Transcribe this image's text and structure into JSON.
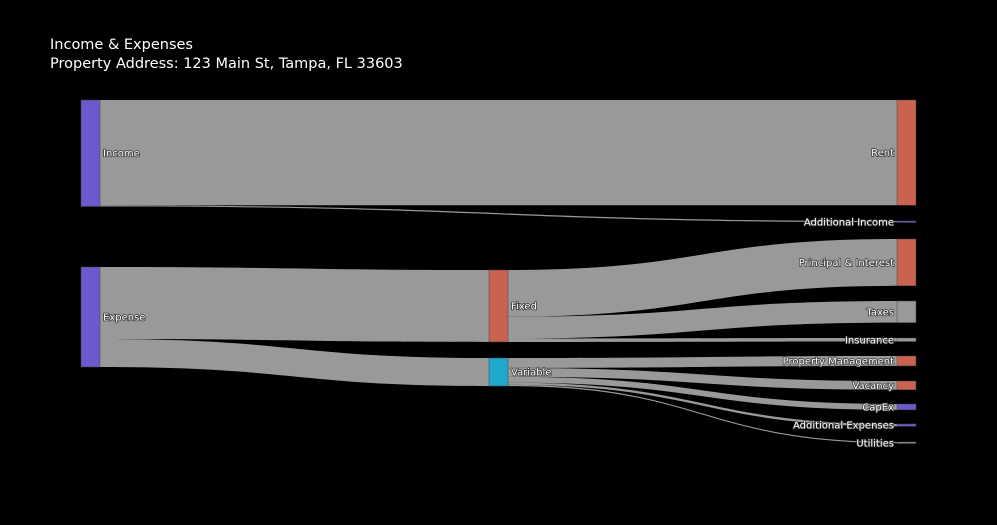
{
  "header": {
    "title": "Income & Expenses",
    "subtitle": "Property Address: 123 Main St, Tampa, FL 33603"
  },
  "chart_data": {
    "type": "sankey",
    "title": "Income & Expenses",
    "subtitle": "Property Address: 123 Main St, Tampa, FL 33603",
    "link_color": "#999999",
    "nodes": [
      {
        "id": "income",
        "label": "Income",
        "color": "#6a5acd"
      },
      {
        "id": "rent",
        "label": "Rent",
        "color": "#c9624f"
      },
      {
        "id": "additional_income",
        "label": "Additional Income",
        "color": "#6a5acd"
      },
      {
        "id": "expense",
        "label": "Expense",
        "color": "#6a5acd"
      },
      {
        "id": "fixed",
        "label": "Fixed",
        "color": "#c9624f"
      },
      {
        "id": "variable",
        "label": "Variable",
        "color": "#1fa8c9"
      },
      {
        "id": "principal_interest",
        "label": "Principal & Interest",
        "color": "#c9624f"
      },
      {
        "id": "taxes",
        "label": "Taxes",
        "color": "#999999"
      },
      {
        "id": "insurance",
        "label": "Insurance",
        "color": "#999999"
      },
      {
        "id": "property_management",
        "label": "Property Management",
        "color": "#c9624f"
      },
      {
        "id": "vacancy",
        "label": "Vacancy",
        "color": "#c9624f"
      },
      {
        "id": "capex",
        "label": "CapEx",
        "color": "#6a5acd"
      },
      {
        "id": "additional_expenses",
        "label": "Additional Expenses",
        "color": "#6a5acd"
      },
      {
        "id": "utilities",
        "label": "Utilities",
        "color": "#999999"
      }
    ],
    "links": [
      {
        "source": "income",
        "target": "rent",
        "value": 1800
      },
      {
        "source": "income",
        "target": "additional_income",
        "value": 20
      },
      {
        "source": "expense",
        "target": "fixed",
        "value": 1230
      },
      {
        "source": "expense",
        "target": "variable",
        "value": 480
      },
      {
        "source": "fixed",
        "target": "principal_interest",
        "value": 800
      },
      {
        "source": "fixed",
        "target": "taxes",
        "value": 370
      },
      {
        "source": "fixed",
        "target": "insurance",
        "value": 60
      },
      {
        "source": "variable",
        "target": "property_management",
        "value": 170
      },
      {
        "source": "variable",
        "target": "vacancy",
        "value": 150
      },
      {
        "source": "variable",
        "target": "capex",
        "value": 100
      },
      {
        "source": "variable",
        "target": "additional_expenses",
        "value": 40
      },
      {
        "source": "variable",
        "target": "utilities",
        "value": 20
      }
    ]
  }
}
